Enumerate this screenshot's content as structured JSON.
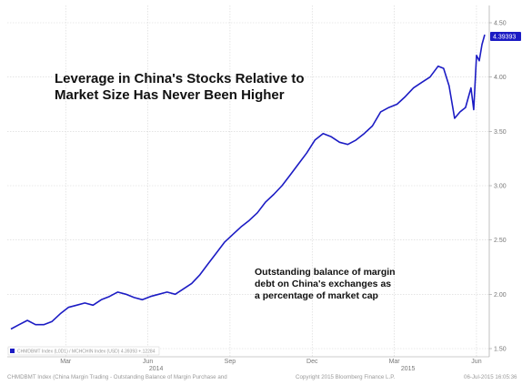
{
  "chart_data": {
    "type": "line",
    "title_lines": [
      "Leverage in China's Stocks Relative to",
      "Market Size Has Never Been Higher"
    ],
    "annotation_lines": [
      "Outstanding balance of margin",
      "debt on China's exchanges as",
      "a percentage of market cap"
    ],
    "y_ticks": [
      "1.50",
      "2.00",
      "2.50",
      "3.00",
      "3.50",
      "4.00",
      "4.50"
    ],
    "ylim": [
      1.5,
      4.5
    ],
    "x_ticks": [
      {
        "label": "Mar",
        "t": 2.0
      },
      {
        "label": "Jun",
        "t": 5.0
      },
      {
        "label": "Sep",
        "t": 8.0
      },
      {
        "label": "Dec",
        "t": 11.0
      },
      {
        "label": "Mar",
        "t": 14.0
      },
      {
        "label": "Jun",
        "t": 17.0
      }
    ],
    "year_labels": [
      {
        "label": "2014",
        "t": 5.3
      },
      {
        "label": "2015",
        "t": 14.5
      }
    ],
    "xlim": [
      0.0,
      17.4
    ],
    "last_value_label": "4.39393",
    "legend_text": "CHMDBMT Index (L0D1) / MCHCHIN Index (USD)  4.39393  +.12284",
    "footer": {
      "left": "CHMDBMT Index (China Margin Trading - Outstanding Balance of Margin Purchase and",
      "center": "Copyright 2015 Bloomberg Finance L.P.",
      "right": "06-Jul-2015 16:05:36"
    },
    "colors": {
      "line": "#1c1cc4",
      "grid": "#d4d4d4",
      "badge": "#1c1cc4"
    },
    "grid": true,
    "series": [
      {
        "x": [
          0.0,
          0.3,
          0.6,
          0.9,
          1.2,
          1.5,
          1.8,
          2.1,
          2.4,
          2.7,
          3.0,
          3.3,
          3.6,
          3.9,
          4.2,
          4.5,
          4.8,
          5.1,
          5.4,
          5.7,
          6.0,
          6.3,
          6.6,
          6.9,
          7.2,
          7.5,
          7.8,
          8.1,
          8.4,
          8.7,
          9.0,
          9.3,
          9.6,
          9.9,
          10.2,
          10.5,
          10.8,
          11.1,
          11.4,
          11.7,
          12.0,
          12.3,
          12.6,
          12.9,
          13.2,
          13.5,
          13.8,
          14.1,
          14.4,
          14.7,
          15.0,
          15.3,
          15.6,
          15.8,
          16.0,
          16.2,
          16.4,
          16.6,
          16.8,
          16.9,
          17.0,
          17.1,
          17.2,
          17.3
        ],
        "values": [
          1.68,
          1.72,
          1.76,
          1.72,
          1.72,
          1.75,
          1.82,
          1.88,
          1.9,
          1.92,
          1.9,
          1.95,
          1.98,
          2.02,
          2.0,
          1.97,
          1.95,
          1.98,
          2.0,
          2.02,
          2.0,
          2.05,
          2.1,
          2.18,
          2.28,
          2.38,
          2.48,
          2.55,
          2.62,
          2.68,
          2.75,
          2.85,
          2.92,
          3.0,
          3.1,
          3.2,
          3.3,
          3.42,
          3.48,
          3.45,
          3.4,
          3.38,
          3.42,
          3.48,
          3.55,
          3.68,
          3.72,
          3.75,
          3.82,
          3.9,
          3.95,
          4.0,
          4.1,
          4.08,
          3.92,
          3.62,
          3.68,
          3.72,
          3.9,
          3.7,
          4.2,
          4.15,
          4.3,
          4.39
        ]
      }
    ]
  }
}
